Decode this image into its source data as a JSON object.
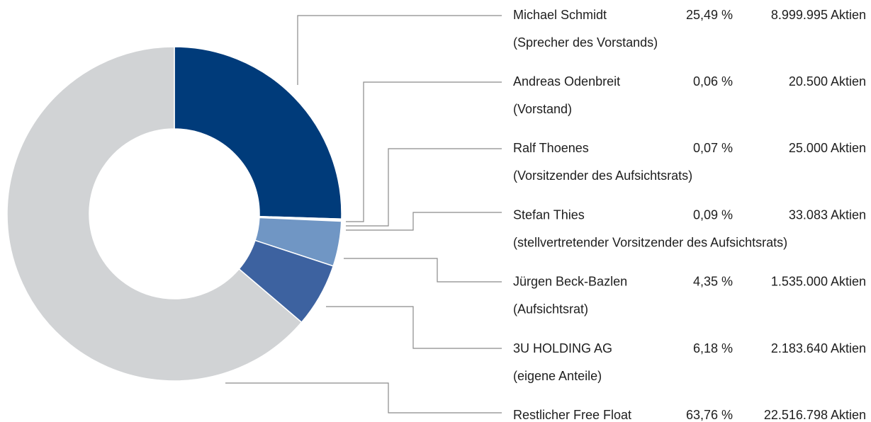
{
  "chart_data": {
    "type": "pie",
    "donut": true,
    "categories": [
      "Michael Schmidt",
      "Andreas Odenbreit",
      "Ralf Thoenes",
      "Stefan Thies",
      "Jürgen Beck-Bazlen",
      "3U HOLDING AG",
      "Restlicher Free Float"
    ],
    "roles": [
      "(Sprecher des Vorstands)",
      "(Vorstand)",
      "(Vorsitzender des Aufsichtsrats)",
      "(stellvertretender Vorsitzender des Aufsichtsrats)",
      "(Aufsichtsrat)",
      "(eigene Anteile)",
      null
    ],
    "values": [
      25.49,
      0.06,
      0.07,
      0.09,
      4.35,
      6.18,
      63.76
    ],
    "value_labels": [
      "25,49 %",
      "0,06 %",
      "0,07 %",
      "0,09 %",
      "4,35 %",
      "6,18 %",
      "63,76 %"
    ],
    "share_labels": [
      "8.999.995 Aktien",
      "20.500 Aktien",
      "25.000 Aktien",
      "33.083 Aktien",
      "1.535.000 Aktien",
      "2.183.640 Aktien",
      "22.516.798 Aktien"
    ],
    "colors": [
      "#003b7a",
      "#a9c4e4",
      "#003b7a",
      "#a9c4e4",
      "#7096c4",
      "#3d62a0",
      "#d1d3d5"
    ]
  }
}
